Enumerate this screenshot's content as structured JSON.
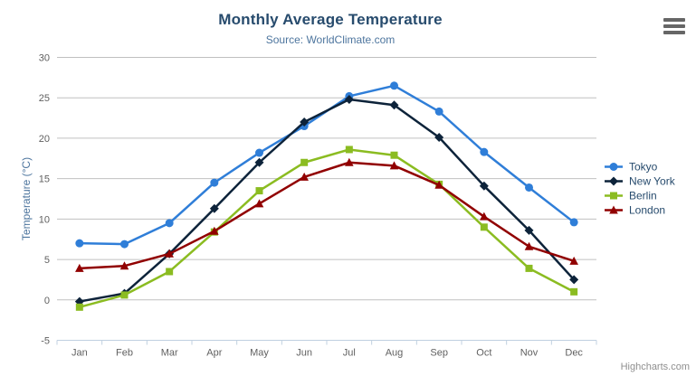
{
  "chart_data": {
    "type": "line",
    "title": "Monthly Average Temperature",
    "subtitle": "Source: WorldClimate.com",
    "xlabel": "",
    "ylabel": "Temperature (°C)",
    "ylim": [
      -5,
      30
    ],
    "ytick_step": 5,
    "grid": true,
    "legend_position": "right-middle",
    "categories": [
      "Jan",
      "Feb",
      "Mar",
      "Apr",
      "May",
      "Jun",
      "Jul",
      "Aug",
      "Sep",
      "Oct",
      "Nov",
      "Dec"
    ],
    "series": [
      {
        "name": "Tokyo",
        "color": "#2f7ed8",
        "marker": "circle",
        "values": [
          7.0,
          6.9,
          9.5,
          14.5,
          18.2,
          21.5,
          25.2,
          26.5,
          23.3,
          18.3,
          13.9,
          9.6
        ]
      },
      {
        "name": "New York",
        "color": "#0d233a",
        "marker": "diamond",
        "values": [
          -0.2,
          0.8,
          5.7,
          11.3,
          17.0,
          22.0,
          24.8,
          24.1,
          20.1,
          14.1,
          8.6,
          2.5
        ]
      },
      {
        "name": "Berlin",
        "color": "#8bbc21",
        "marker": "square",
        "values": [
          -0.9,
          0.6,
          3.5,
          8.4,
          13.5,
          17.0,
          18.6,
          17.9,
          14.3,
          9.0,
          3.9,
          1.0
        ]
      },
      {
        "name": "London",
        "color": "#910000",
        "marker": "triangle",
        "values": [
          3.9,
          4.2,
          5.7,
          8.5,
          11.9,
          15.2,
          17.0,
          16.6,
          14.2,
          10.3,
          6.6,
          4.8
        ]
      }
    ]
  },
  "credits": {
    "label": "Highcharts.com"
  },
  "menu": {
    "icon": "hamburger-icon"
  },
  "palette": {
    "title_color": "#274b6d",
    "subtitle_color": "#4d759e",
    "axis_title_color": "#4d759e",
    "tick_label_color": "#606060",
    "grid_color": "#c0c0c0",
    "axis_line_color": "#c0d0e0",
    "legend_text_color": "#274b6d",
    "credits_color": "#8f8f8f",
    "menu_icon_color": "#666666",
    "background": "#ffffff"
  }
}
